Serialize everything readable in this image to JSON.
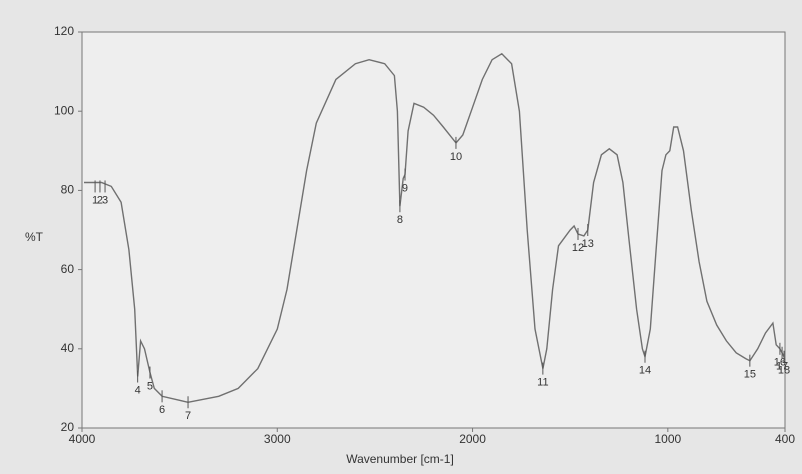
{
  "chart_data": {
    "type": "line",
    "xlabel": "Wavenumber [cm-1]",
    "ylabel": "%T",
    "color": "#707070",
    "xlim": [
      4000,
      400
    ],
    "xticks": [
      4000,
      3000,
      2000,
      1000,
      400
    ],
    "ylim": [
      20,
      120
    ],
    "yticks": [
      20,
      40,
      60,
      80,
      100,
      120
    ],
    "x": [
      3990,
      3900,
      3850,
      3800,
      3760,
      3730,
      3715,
      3700,
      3680,
      3652,
      3630,
      3590,
      3500,
      3457,
      3300,
      3200,
      3100,
      3000,
      2950,
      2900,
      2850,
      2800,
      2700,
      2600,
      2530,
      2450,
      2400,
      2385,
      2372,
      2355,
      2346,
      2330,
      2300,
      2250,
      2200,
      2150,
      2085,
      2050,
      2000,
      1950,
      1900,
      1850,
      1800,
      1760,
      1720,
      1680,
      1640,
      1620,
      1590,
      1560,
      1500,
      1480,
      1460,
      1430,
      1410,
      1380,
      1340,
      1300,
      1260,
      1230,
      1200,
      1160,
      1130,
      1117,
      1090,
      1060,
      1030,
      1010,
      990,
      970,
      950,
      920,
      880,
      840,
      800,
      750,
      700,
      650,
      600,
      580,
      540,
      500,
      462,
      445,
      426,
      415,
      405
    ],
    "values": [
      82,
      82,
      81,
      77,
      65,
      50,
      33,
      42,
      40,
      34,
      30,
      28,
      27,
      26.5,
      28,
      30,
      35,
      45,
      55,
      70,
      85,
      97,
      108,
      112,
      113,
      112,
      109,
      100,
      76,
      83,
      84,
      95,
      102,
      101,
      99,
      96,
      92,
      94,
      101,
      108,
      113,
      114.5,
      112,
      100,
      70,
      45,
      35,
      40,
      55,
      66,
      70,
      71,
      69,
      68.5,
      70,
      82,
      89,
      90.5,
      89,
      82,
      68,
      50,
      40,
      38,
      45,
      65,
      85,
      89,
      90,
      96,
      96,
      90,
      75,
      62,
      52,
      46,
      42,
      39,
      37.5,
      37,
      40,
      44,
      46.5,
      41,
      40,
      39,
      38
    ],
    "annotations": [
      {
        "label": "1",
        "x": 3933,
        "y": 81
      },
      {
        "label": "2",
        "x": 3908,
        "y": 81
      },
      {
        "label": "3",
        "x": 3882,
        "y": 81
      },
      {
        "label": "4",
        "x": 3715,
        "y": 33
      },
      {
        "label": "5",
        "x": 3652,
        "y": 34
      },
      {
        "label": "6",
        "x": 3590,
        "y": 28
      },
      {
        "label": "7",
        "x": 3457,
        "y": 26.5
      },
      {
        "label": "8",
        "x": 2372,
        "y": 76
      },
      {
        "label": "9",
        "x": 2346,
        "y": 84
      },
      {
        "label": "10",
        "x": 2085,
        "y": 92
      },
      {
        "label": "11",
        "x": 1640,
        "y": 35
      },
      {
        "label": "12",
        "x": 1460,
        "y": 69
      },
      {
        "label": "13",
        "x": 1410,
        "y": 70
      },
      {
        "label": "14",
        "x": 1117,
        "y": 38
      },
      {
        "label": "15",
        "x": 580,
        "y": 37
      },
      {
        "label": "16",
        "x": 426,
        "y": 40
      },
      {
        "label": "17",
        "x": 415,
        "y": 39
      },
      {
        "label": "18",
        "x": 405,
        "y": 38
      }
    ]
  }
}
